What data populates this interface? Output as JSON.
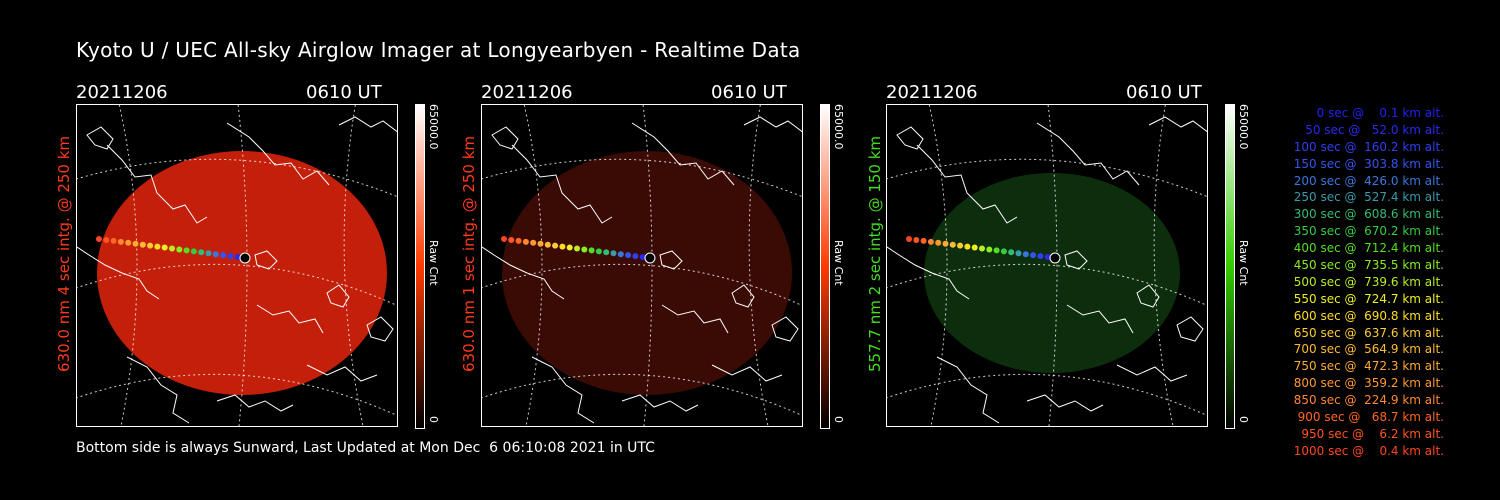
{
  "title": "Kyoto U / UEC All-sky Airglow Imager at Longyearbyen - Realtime Data",
  "panels": [
    {
      "date": "20211206",
      "time": "0610 UT",
      "side_label": "630.0 nm 4 sec intg. @ 250 km",
      "label_color": "#ff3a1a",
      "cbar_max": "65000.0",
      "cbar_min": "0",
      "cbar_unit": "Raw Cnt",
      "tint": "#c41f0a",
      "cbar_gradient": [
        "#000000",
        "#ff3a00",
        "#ffffff"
      ]
    },
    {
      "date": "20211206",
      "time": "0610 UT",
      "side_label": "630.0 nm 1 sec intg. @ 250 km",
      "label_color": "#ff3a1a",
      "cbar_max": "65000.0",
      "cbar_min": "0",
      "cbar_unit": "Raw Cnt",
      "tint": "#3a0a05",
      "cbar_gradient": [
        "#000000",
        "#ff3a00",
        "#ffffff"
      ]
    },
    {
      "date": "20211206",
      "time": "0610 UT",
      "side_label": "557.7 nm 2 sec intg. @ 150 km",
      "label_color": "#44dd22",
      "cbar_max": "65000.0",
      "cbar_min": "0",
      "cbar_unit": "Raw Cnt",
      "tint": "#0d2e0d",
      "cbar_gradient": [
        "#000000",
        "#33cc00",
        "#ffffff"
      ]
    }
  ],
  "footer": "Bottom side is always Sunward, Last Updated at Mon Dec  6 06:10:08 2021 in UTC",
  "legend": [
    {
      "text": "   0 sec @    0.1 km alt.",
      "color": "#2222ee"
    },
    {
      "text": "  50 sec @   52.0 km alt.",
      "color": "#2a2aee"
    },
    {
      "text": " 100 sec @  160.2 km alt.",
      "color": "#2f3fee"
    },
    {
      "text": " 150 sec @  303.8 km alt.",
      "color": "#3355ee"
    },
    {
      "text": " 200 sec @  426.0 km alt.",
      "color": "#3a77dd"
    },
    {
      "text": " 250 sec @  527.4 km alt.",
      "color": "#3a9aaa"
    },
    {
      "text": " 300 sec @  608.6 km alt.",
      "color": "#33bb77"
    },
    {
      "text": " 350 sec @  670.2 km alt.",
      "color": "#33cc44"
    },
    {
      "text": " 400 sec @  712.4 km alt.",
      "color": "#55dd22"
    },
    {
      "text": " 450 sec @  735.5 km alt.",
      "color": "#88ee22"
    },
    {
      "text": " 500 sec @  739.6 km alt.",
      "color": "#bbee22"
    },
    {
      "text": " 550 sec @  724.7 km alt.",
      "color": "#eeee22"
    },
    {
      "text": " 600 sec @  690.8 km alt.",
      "color": "#ffdd22"
    },
    {
      "text": " 650 sec @  637.6 km alt.",
      "color": "#ffcc33"
    },
    {
      "text": " 700 sec @  564.9 km alt.",
      "color": "#ffbb33"
    },
    {
      "text": " 750 sec @  472.3 km alt.",
      "color": "#ffaa33"
    },
    {
      "text": " 800 sec @  359.2 km alt.",
      "color": "#ff9933"
    },
    {
      "text": " 850 sec @  224.9 km alt.",
      "color": "#ff8833"
    },
    {
      "text": " 900 sec @   68.7 km alt.",
      "color": "#ff6622"
    },
    {
      "text": " 950 sec @    6.2 km alt.",
      "color": "#ff5522"
    },
    {
      "text": "1000 sec @    0.4 km alt.",
      "color": "#ff4422"
    }
  ]
}
